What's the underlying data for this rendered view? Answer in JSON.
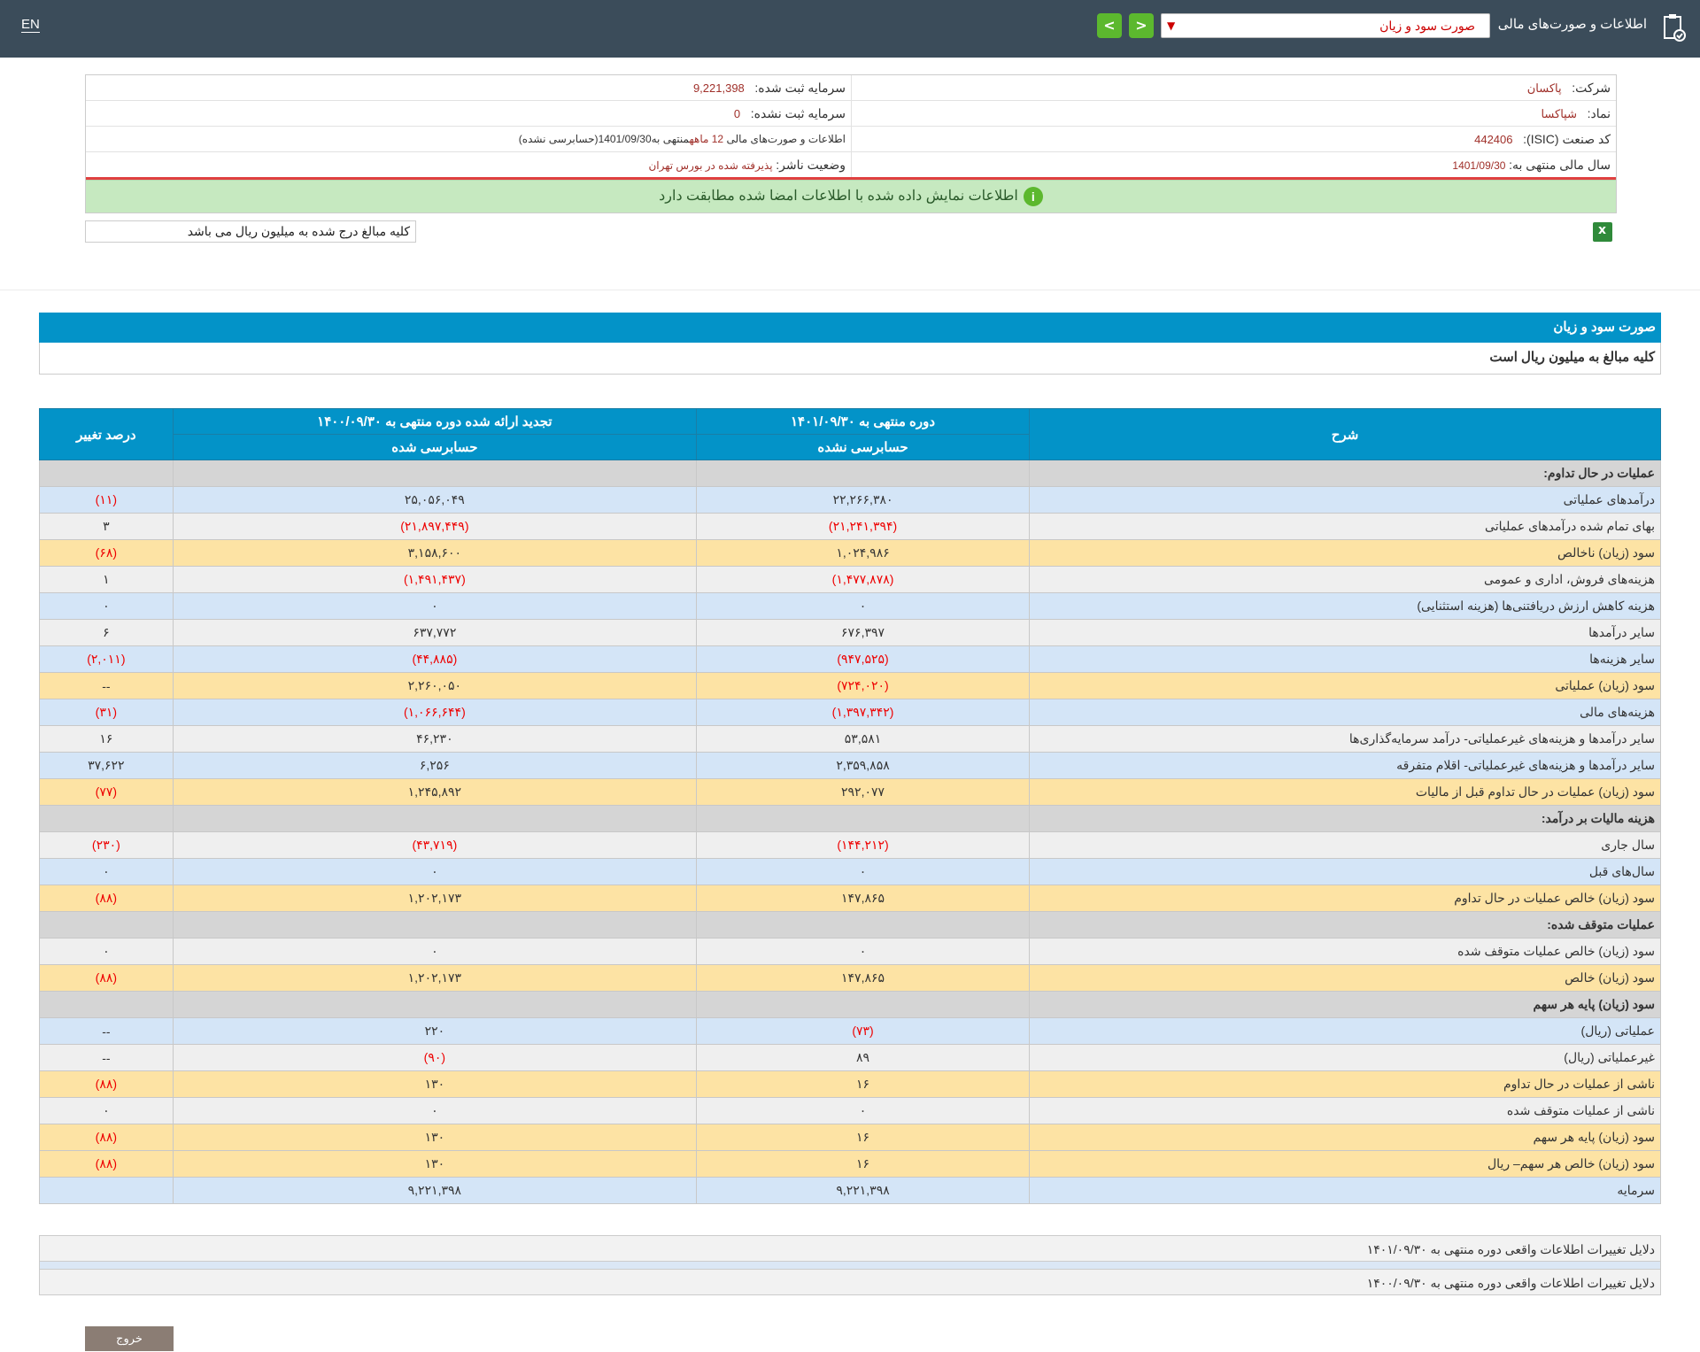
{
  "topbar": {
    "lang": "EN",
    "title": "اطلاعات و صورت‌های مالی",
    "selected_report": "صورت سود و زیان",
    "nav_prev": "<",
    "nav_next": ">"
  },
  "info": {
    "company_label": "شرکت:",
    "company_value": "پاکسان",
    "registered_capital_label": "سرمایه ثبت شده:",
    "registered_capital_value": "9,221,398",
    "symbol_label": "نماد:",
    "symbol_value": "شپاکسا",
    "unregistered_capital_label": "سرمایه ثبت نشده:",
    "unregistered_capital_value": "0",
    "isic_label": "کد صنعت (ISIC):",
    "isic_value": "442406",
    "statements_prefix": "اطلاعات و صورت‌های مالی",
    "statements_period": "12 ماهه",
    "statements_mid": "منتهی به",
    "statements_date": "1401/09/30",
    "statements_status": "(حسابرسی نشده)",
    "fiscal_year_label": "سال مالی منتهی به:",
    "fiscal_year_value": "1401/09/30",
    "publisher_status_label": "وضعیت ناشر:",
    "publisher_status_value": "پذیرفته شده در بورس تهران",
    "match_message": "اطلاعات نمایش داده شده با اطلاعات امضا شده مطابقت دارد",
    "info_icon": "i",
    "amounts_note": "کلیه مبالغ درج شده به میلیون ریال می باشد"
  },
  "panel": {
    "title": "صورت سود و زیان",
    "subtitle": "کلیه مبالغ به میلیون ریال است"
  },
  "table": {
    "headers": {
      "desc": "شرح",
      "current": "دوره منتهی به ۱۴۰۱/۰۹/۳۰",
      "current_sub": "حسابرسی نشده",
      "restated": "تجدید ارائه شده دوره منتهی به ۱۴۰۰/۰۹/۳۰",
      "restated_sub": "حسابرسی شده",
      "change": "درصد تغییر"
    },
    "rows": [
      {
        "type": "sec",
        "desc": "عملیات در حال تداوم:",
        "cur": "",
        "prev": "",
        "chg": ""
      },
      {
        "type": "blue",
        "desc": "درآمدهای عملیاتی",
        "cur": "۲۲,۲۶۶,۳۸۰",
        "prev": "۲۵,۰۵۶,۰۴۹",
        "chg": "(۱۱)"
      },
      {
        "type": "gray",
        "desc": "بهای تمام شده درآمدهای عملیاتی",
        "cur": "(۲۱,۲۴۱,۳۹۴)",
        "prev": "(۲۱,۸۹۷,۴۴۹)",
        "chg": "۳"
      },
      {
        "type": "orange",
        "desc": "سود (زیان) ناخالص",
        "cur": "۱,۰۲۴,۹۸۶",
        "prev": "۳,۱۵۸,۶۰۰",
        "chg": "(۶۸)"
      },
      {
        "type": "gray",
        "desc": "هزینه‌های فروش، اداری و عمومی",
        "cur": "(۱,۴۷۷,۸۷۸)",
        "prev": "(۱,۴۹۱,۴۳۷)",
        "chg": "۱"
      },
      {
        "type": "blue",
        "desc": "هزینه کاهش ارزش دریافتنی‌ها (هزینه استثنایی)",
        "cur": "۰",
        "prev": "۰",
        "chg": "۰"
      },
      {
        "type": "gray",
        "desc": "سایر درآمدها",
        "cur": "۶۷۶,۳۹۷",
        "prev": "۶۳۷,۷۷۲",
        "chg": "۶"
      },
      {
        "type": "blue",
        "desc": "سایر هزینه‌ها",
        "cur": "(۹۴۷,۵۲۵)",
        "prev": "(۴۴,۸۸۵)",
        "chg": "(۲,۰۱۱)"
      },
      {
        "type": "orange",
        "desc": "سود (زیان) عملیاتی",
        "cur": "(۷۲۴,۰۲۰)",
        "prev": "۲,۲۶۰,۰۵۰",
        "chg": "--"
      },
      {
        "type": "blue",
        "desc": "هزینه‌های مالی",
        "cur": "(۱,۳۹۷,۳۴۲)",
        "prev": "(۱,۰۶۶,۶۴۴)",
        "chg": "(۳۱)"
      },
      {
        "type": "gray",
        "desc": "سایر درآمدها و هزینه‌های غیرعملیاتی- درآمد سرمایه‌گذاری‌ها",
        "cur": "۵۳,۵۸۱",
        "prev": "۴۶,۲۳۰",
        "chg": "۱۶"
      },
      {
        "type": "blue",
        "desc": "سایر درآمدها و هزینه‌های غیرعملیاتی- اقلام متفرقه",
        "cur": "۲,۳۵۹,۸۵۸",
        "prev": "۶,۲۵۶",
        "chg": "۳۷,۶۲۲"
      },
      {
        "type": "orange",
        "desc": "سود (زیان) عملیات در حال تداوم قبل از مالیات",
        "cur": "۲۹۲,۰۷۷",
        "prev": "۱,۲۴۵,۸۹۲",
        "chg": "(۷۷)"
      },
      {
        "type": "sec",
        "desc": "هزینه مالیات بر درآمد:",
        "cur": "",
        "prev": "",
        "chg": ""
      },
      {
        "type": "gray",
        "desc": "سال جاری",
        "cur": "(۱۴۴,۲۱۲)",
        "prev": "(۴۳,۷۱۹)",
        "chg": "(۲۳۰)"
      },
      {
        "type": "blue",
        "desc": "سال‌های قبل",
        "cur": "۰",
        "prev": "۰",
        "chg": "۰"
      },
      {
        "type": "orange",
        "desc": "سود (زیان) خالص عملیات در حال تداوم",
        "cur": "۱۴۷,۸۶۵",
        "prev": "۱,۲۰۲,۱۷۳",
        "chg": "(۸۸)"
      },
      {
        "type": "sec",
        "desc": "عملیات متوقف شده:",
        "cur": "",
        "prev": "",
        "chg": ""
      },
      {
        "type": "gray",
        "desc": "سود (زیان) خالص عملیات متوقف شده",
        "cur": "۰",
        "prev": "۰",
        "chg": "۰"
      },
      {
        "type": "orange",
        "desc": "سود (زیان) خالص",
        "cur": "۱۴۷,۸۶۵",
        "prev": "۱,۲۰۲,۱۷۳",
        "chg": "(۸۸)"
      },
      {
        "type": "sec",
        "desc": "سود (زیان) پایه هر سهم",
        "cur": "",
        "prev": "",
        "chg": ""
      },
      {
        "type": "blue",
        "desc": "عملیاتی (ریال)",
        "cur": "(۷۳)",
        "prev": "۲۲۰",
        "chg": "--"
      },
      {
        "type": "gray",
        "desc": "غیرعملیاتی (ریال)",
        "cur": "۸۹",
        "prev": "(۹۰)",
        "chg": "--"
      },
      {
        "type": "orange",
        "desc": "ناشی از عملیات در حال تداوم",
        "cur": "۱۶",
        "prev": "۱۳۰",
        "chg": "(۸۸)"
      },
      {
        "type": "gray",
        "desc": "ناشی از عملیات متوقف شده",
        "cur": "۰",
        "prev": "۰",
        "chg": "۰"
      },
      {
        "type": "orange",
        "desc": "سود (زیان) پایه هر سهم",
        "cur": "۱۶",
        "prev": "۱۳۰",
        "chg": "(۸۸)"
      },
      {
        "type": "orange",
        "desc": "سود (زیان) خالص هر سهم– ریال",
        "cur": "۱۶",
        "prev": "۱۳۰",
        "chg": "(۸۸)"
      },
      {
        "type": "blue",
        "desc": "سرمایه",
        "cur": "۹,۲۲۱,۳۹۸",
        "prev": "۹,۲۲۱,۳۹۸",
        "chg": ""
      }
    ]
  },
  "reasons": [
    "دلایل تغییرات اطلاعات واقعی دوره منتهی به ۱۴۰۱/۰۹/۳۰",
    "دلایل تغییرات اطلاعات واقعی دوره منتهی به ۱۴۰۰/۰۹/۳۰"
  ],
  "exit_label": "خروج"
}
